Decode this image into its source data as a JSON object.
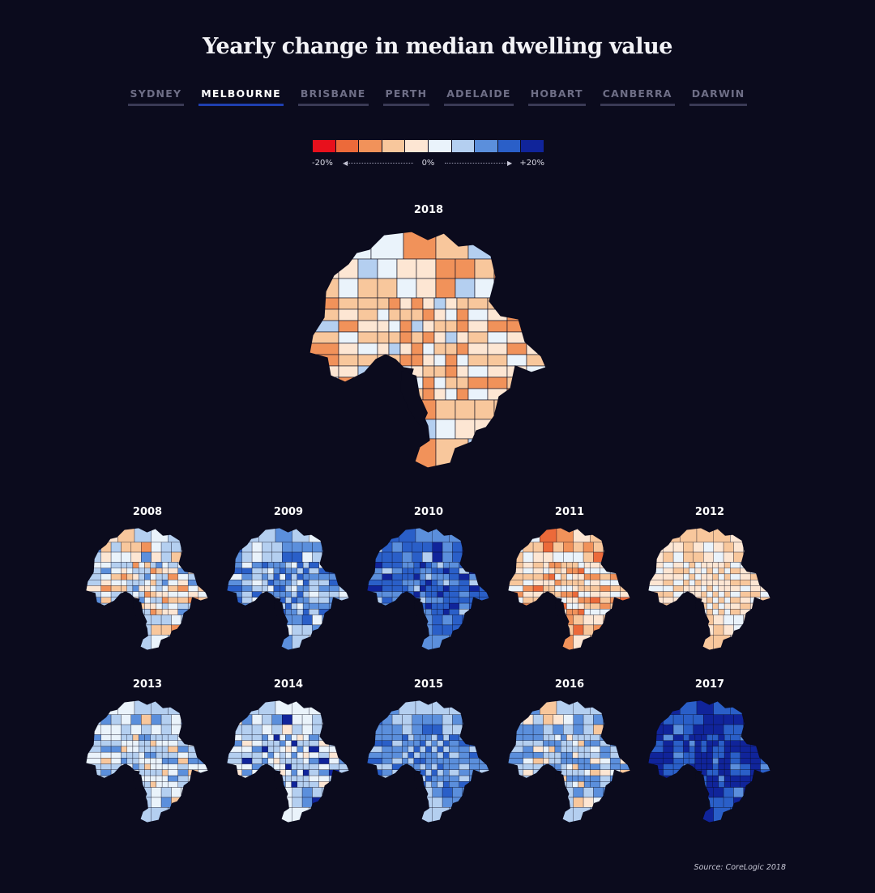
{
  "title": "Yearly change in median dwelling value",
  "tabs": [
    {
      "label": "SYDNEY",
      "active": false
    },
    {
      "label": "MELBOURNE",
      "active": true
    },
    {
      "label": "BRISBANE",
      "active": false
    },
    {
      "label": "PERTH",
      "active": false
    },
    {
      "label": "ADELAIDE",
      "active": false
    },
    {
      "label": "HOBART",
      "active": false
    },
    {
      "label": "CANBERRA",
      "active": false
    },
    {
      "label": "DARWIN",
      "active": false
    }
  ],
  "legend": {
    "colors": [
      "#e8101c",
      "#ec6a3a",
      "#f1925a",
      "#f8c79c",
      "#fde6d3",
      "#eaf3fb",
      "#b4cff0",
      "#5b8fdc",
      "#2a5fc8",
      "#10249a"
    ],
    "min_label": "-20%",
    "mid_label": "0%",
    "max_label": "+20%"
  },
  "main_map": {
    "year": "2018",
    "palette": [
      3,
      3,
      2,
      4,
      2,
      3,
      4,
      5,
      2,
      3,
      5,
      6,
      4
    ]
  },
  "small_maps": [
    {
      "year": "2008",
      "palette": [
        6,
        5,
        4,
        3,
        6,
        5,
        7,
        3,
        5,
        6,
        4,
        6,
        2
      ]
    },
    {
      "year": "2009",
      "palette": [
        7,
        6,
        8,
        6,
        7,
        5,
        8,
        6,
        7,
        8,
        6,
        5,
        7
      ]
    },
    {
      "year": "2010",
      "palette": [
        8,
        7,
        9,
        8,
        7,
        8,
        6,
        8,
        9,
        7,
        8,
        7,
        8
      ]
    },
    {
      "year": "2011",
      "palette": [
        3,
        4,
        5,
        3,
        2,
        4,
        5,
        1,
        3,
        4,
        5,
        3,
        2
      ]
    },
    {
      "year": "2012",
      "palette": [
        4,
        3,
        5,
        4,
        3,
        5,
        4,
        3,
        4,
        5,
        3,
        4,
        5
      ]
    },
    {
      "year": "2013",
      "palette": [
        5,
        6,
        5,
        7,
        6,
        5,
        6,
        5,
        7,
        6,
        5,
        6,
        3
      ]
    },
    {
      "year": "2014",
      "palette": [
        6,
        5,
        6,
        7,
        5,
        6,
        4,
        6,
        5,
        7,
        6,
        5,
        9
      ]
    },
    {
      "year": "2015",
      "palette": [
        7,
        6,
        8,
        7,
        6,
        7,
        8,
        6,
        7,
        8,
        7,
        6,
        7
      ]
    },
    {
      "year": "2016",
      "palette": [
        7,
        6,
        7,
        4,
        6,
        7,
        6,
        3,
        7,
        6,
        7,
        6,
        5
      ]
    },
    {
      "year": "2017",
      "palette": [
        9,
        8,
        9,
        8,
        9,
        7,
        9,
        8,
        9,
        8,
        9,
        8,
        9
      ]
    }
  ],
  "source": "Source: CoreLogic 2018"
}
